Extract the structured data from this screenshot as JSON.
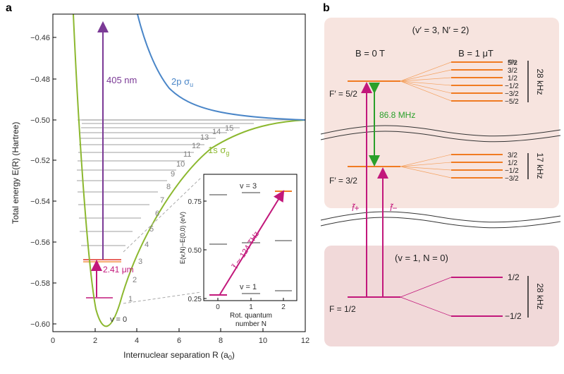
{
  "panel_a": {
    "label": "a",
    "xlabel": "Internuclear separation R (a",
    "xlabel_sub": "0",
    "xlabel_end": ")",
    "ylabel": "Total energy E(R) (Hartree)",
    "xticks": [
      "0",
      "2",
      "4",
      "6",
      "8",
      "10",
      "12"
    ],
    "yticks": [
      "−0.46",
      "−0.48",
      "−0.50",
      "−0.52",
      "−0.54",
      "−0.56",
      "−0.58",
      "−0.60"
    ],
    "curve_ground_label": "1s σ",
    "curve_ground_sub": "g",
    "curve_excited_label": "2p σ",
    "curve_excited_sub": "u",
    "transition_405": "405 nm",
    "transition_241": "2.41 μm",
    "v_labels": [
      "v = 0",
      "1",
      "2",
      "3",
      "4",
      "5",
      "6",
      "7",
      "8",
      "9",
      "10",
      "11",
      "12",
      "13",
      "14",
      "15"
    ],
    "colors": {
      "ground": "#8cb82f",
      "excited": "#4a86c8",
      "uv": "#7b3a96",
      "ir": "#c2187b",
      "levels": "#7f7f7f",
      "red": "#e0302a"
    }
  },
  "inset": {
    "ylabel": "E(v,N)−E(0,0) (eV)",
    "xlabel_line1": "Rot. quantum",
    "xlabel_line2": "number N",
    "xticks": [
      "0",
      "1",
      "2"
    ],
    "yticks": [
      "0.25",
      "0.50",
      "0.75"
    ],
    "v3_label": "v = 3",
    "v1_label": "v = 1",
    "transition_label": "f̃ ≃ 124 THz"
  },
  "panel_b": {
    "label": "b",
    "upper_title": "(v′ = 3, N′ = 2)",
    "lower_title": "(v = 1, N = 0)",
    "b0": "B = 0 T",
    "b1": "B = 1 μT",
    "mf": "m",
    "mf_sub": "F",
    "f_prime_52": "F′ = 5/2",
    "f_prime_32": "F′ = 3/2",
    "f_12": "F = 1/2",
    "split_868": "86.8 MHz",
    "zeeman_52": [
      "5/2",
      "3/2",
      "1/2",
      "−1/2",
      "−3/2",
      "−5/2"
    ],
    "zeeman_32": [
      "3/2",
      "1/2",
      "−1/2",
      "−3/2"
    ],
    "zeeman_12": [
      "1/2",
      "−1/2"
    ],
    "khz_28a": "28 kHz",
    "khz_17": "17 kHz",
    "khz_28b": "28 kHz",
    "f_plus": "f̃+",
    "f_minus": "f̃−",
    "colors": {
      "box": "#f7e4df",
      "box_lower": "#f1d9d9",
      "orange": "#f07b22",
      "magenta": "#c2187b",
      "green": "#2aa02a"
    }
  }
}
